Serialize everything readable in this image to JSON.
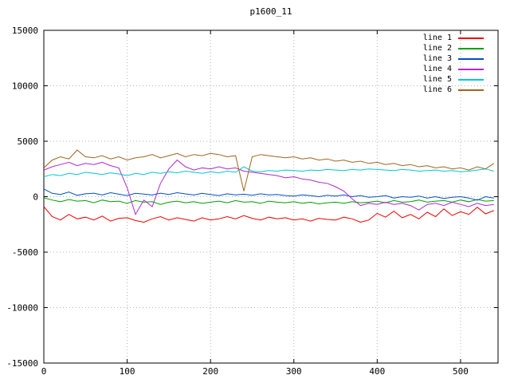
{
  "chart_data": {
    "type": "line",
    "title": "p1600_11",
    "xlabel": "",
    "ylabel": "",
    "xlim": [
      0,
      545
    ],
    "ylim": [
      -15000,
      15000
    ],
    "xticks": [
      0,
      100,
      200,
      300,
      400,
      500
    ],
    "yticks": [
      -15000,
      -10000,
      -5000,
      0,
      5000,
      10000,
      15000
    ],
    "grid": true,
    "grid_style": "dotted",
    "legend_position": "top-right",
    "x": [
      0,
      10,
      20,
      30,
      40,
      50,
      60,
      70,
      80,
      90,
      100,
      110,
      120,
      130,
      140,
      150,
      160,
      170,
      180,
      190,
      200,
      210,
      220,
      230,
      240,
      250,
      260,
      270,
      280,
      290,
      300,
      310,
      320,
      330,
      340,
      350,
      360,
      370,
      380,
      390,
      400,
      410,
      420,
      430,
      440,
      450,
      460,
      470,
      480,
      490,
      500,
      510,
      520,
      530,
      540
    ],
    "series": [
      {
        "name": "line 1",
        "color": "#ee0000",
        "values": [
          -900,
          -1800,
          -2100,
          -1600,
          -2000,
          -1850,
          -2100,
          -1750,
          -2200,
          -1950,
          -1900,
          -2150,
          -2300,
          -2000,
          -1800,
          -2100,
          -1900,
          -2050,
          -2200,
          -1900,
          -2100,
          -2000,
          -1800,
          -2000,
          -1700,
          -1950,
          -2100,
          -1850,
          -2000,
          -1900,
          -2100,
          -2000,
          -2200,
          -1950,
          -2050,
          -2100,
          -1850,
          -2000,
          -2300,
          -2100,
          -1500,
          -1850,
          -1300,
          -1900,
          -1600,
          -2000,
          -1400,
          -1800,
          -1100,
          -1700,
          -1350,
          -1600,
          -950,
          -1550,
          -1250
        ]
      },
      {
        "name": "line 2",
        "color": "#00a000",
        "values": [
          -100,
          -300,
          -450,
          -250,
          -400,
          -350,
          -550,
          -300,
          -450,
          -400,
          -600,
          -350,
          -500,
          -450,
          -700,
          -500,
          -400,
          -550,
          -450,
          -600,
          -500,
          -400,
          -550,
          -350,
          -500,
          -450,
          -600,
          -400,
          -500,
          -550,
          -450,
          -600,
          -500,
          -650,
          -550,
          -500,
          -600,
          -450,
          -550,
          -500,
          -400,
          -550,
          -350,
          -500,
          -450,
          -300,
          -500,
          -400,
          -350,
          -500,
          -300,
          -450,
          -250,
          -400,
          -350
        ]
      },
      {
        "name": "line 3",
        "color": "#0050c8",
        "values": [
          700,
          300,
          200,
          420,
          120,
          260,
          320,
          160,
          360,
          220,
          100,
          300,
          240,
          150,
          320,
          200,
          360,
          250,
          150,
          300,
          200,
          100,
          260,
          160,
          220,
          120,
          260,
          160,
          200,
          100,
          60,
          160,
          100,
          0,
          120,
          60,
          160,
          0,
          100,
          -60,
          0,
          100,
          -120,
          0,
          -60,
          60,
          -120,
          0,
          -160,
          -60,
          0,
          -120,
          -320,
          0,
          -120
        ]
      },
      {
        "name": "line 4",
        "color": "#b028d0",
        "values": [
          2400,
          2700,
          2900,
          3100,
          2800,
          3000,
          2900,
          3100,
          2800,
          2600,
          800,
          -1600,
          -300,
          -900,
          1200,
          2500,
          3300,
          2700,
          2400,
          2600,
          2500,
          2700,
          2500,
          2600,
          2300,
          2200,
          2100,
          2000,
          1900,
          1700,
          1800,
          1600,
          1500,
          1300,
          1200,
          900,
          500,
          -200,
          -800,
          -600,
          -700,
          -500,
          -700,
          -600,
          -800,
          -1200,
          -700,
          -600,
          -800,
          -500,
          -700,
          -900,
          -600,
          -800,
          -700
        ]
      },
      {
        "name": "line 5",
        "color": "#00c8d0",
        "values": [
          1800,
          2000,
          1900,
          2100,
          2000,
          2200,
          2100,
          2000,
          2150,
          2050,
          1900,
          2100,
          2000,
          2200,
          2100,
          2250,
          2150,
          2300,
          2200,
          2100,
          2250,
          2150,
          2300,
          2200,
          2700,
          2300,
          2250,
          2350,
          2300,
          2400,
          2350,
          2300,
          2400,
          2350,
          2450,
          2400,
          2350,
          2450,
          2400,
          2500,
          2450,
          2400,
          2350,
          2450,
          2400,
          2300,
          2350,
          2400,
          2300,
          2350,
          2250,
          2300,
          2400,
          2500,
          2300
        ]
      },
      {
        "name": "line 6",
        "color": "#a0641e",
        "values": [
          2600,
          3300,
          3600,
          3400,
          4200,
          3600,
          3500,
          3700,
          3400,
          3600,
          3300,
          3500,
          3600,
          3800,
          3500,
          3700,
          3900,
          3600,
          3800,
          3700,
          3900,
          3800,
          3600,
          3700,
          500,
          3600,
          3800,
          3700,
          3600,
          3500,
          3600,
          3400,
          3500,
          3300,
          3400,
          3200,
          3300,
          3100,
          3200,
          3000,
          3100,
          2900,
          3000,
          2800,
          2900,
          2700,
          2800,
          2600,
          2700,
          2500,
          2600,
          2400,
          2700,
          2500,
          3000
        ]
      }
    ]
  },
  "colors": {
    "background": "#ffffff",
    "border": "#000000",
    "grid": "#b4b4b4",
    "text": "#000000"
  }
}
